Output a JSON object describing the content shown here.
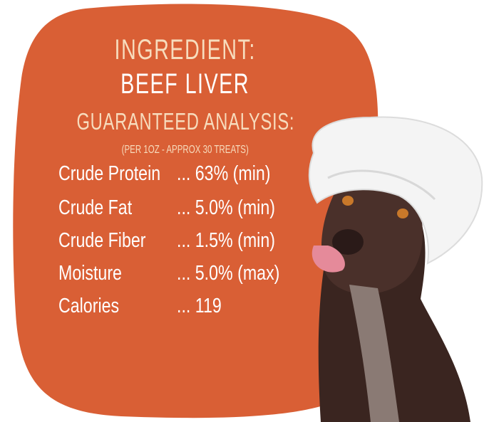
{
  "header": {
    "ingredient_label": "INGREDIENT:",
    "ingredient": "BEEF LIVER",
    "analysis_title": "GUARANTEED ANALYSIS:",
    "serving_note": "(PER 1OZ - APPROX 30 TREATS)"
  },
  "analysis": [
    {
      "label": "Crude Protein",
      "value": "... 63% (min)"
    },
    {
      "label": "Crude Fat",
      "value": "... 5.0% (min)"
    },
    {
      "label": "Crude Fiber",
      "value": "... 1.5% (min)"
    },
    {
      "label": "Moisture",
      "value": "... 5.0% (max)"
    },
    {
      "label": "Calories",
      "value": "... 119"
    }
  ],
  "colors": {
    "background_blob": "#d95f35",
    "heading_cream": "#f7dcbd",
    "text_white": "#ffffff"
  },
  "image": {
    "subject": "dog-with-chef-hat"
  }
}
